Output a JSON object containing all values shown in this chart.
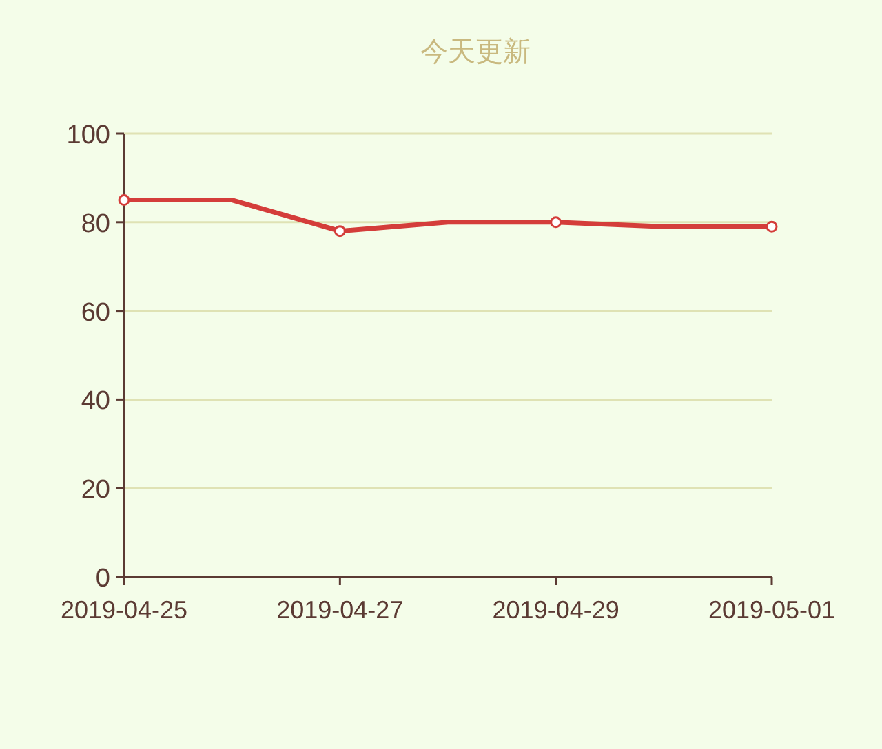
{
  "chart_data": {
    "type": "line",
    "title": "今天更新",
    "x": [
      "2019-04-25",
      "2019-04-26",
      "2019-04-27",
      "2019-04-28",
      "2019-04-29",
      "2019-04-30",
      "2019-05-01"
    ],
    "series": [
      {
        "color": "#d43d3a",
        "values": [
          85,
          85,
          78,
          80,
          80,
          79,
          79
        ]
      }
    ],
    "xlim": [
      "2019-04-25",
      "2019-05-01"
    ],
    "xticks": [
      "2019-04-25",
      "2019-04-27",
      "2019-04-29",
      "2019-05-01"
    ],
    "ylim": [
      0,
      100
    ],
    "yticks": [
      0,
      20,
      40,
      60,
      80,
      100
    ],
    "grid": "y",
    "marker": "circle",
    "line_style": "solid"
  }
}
